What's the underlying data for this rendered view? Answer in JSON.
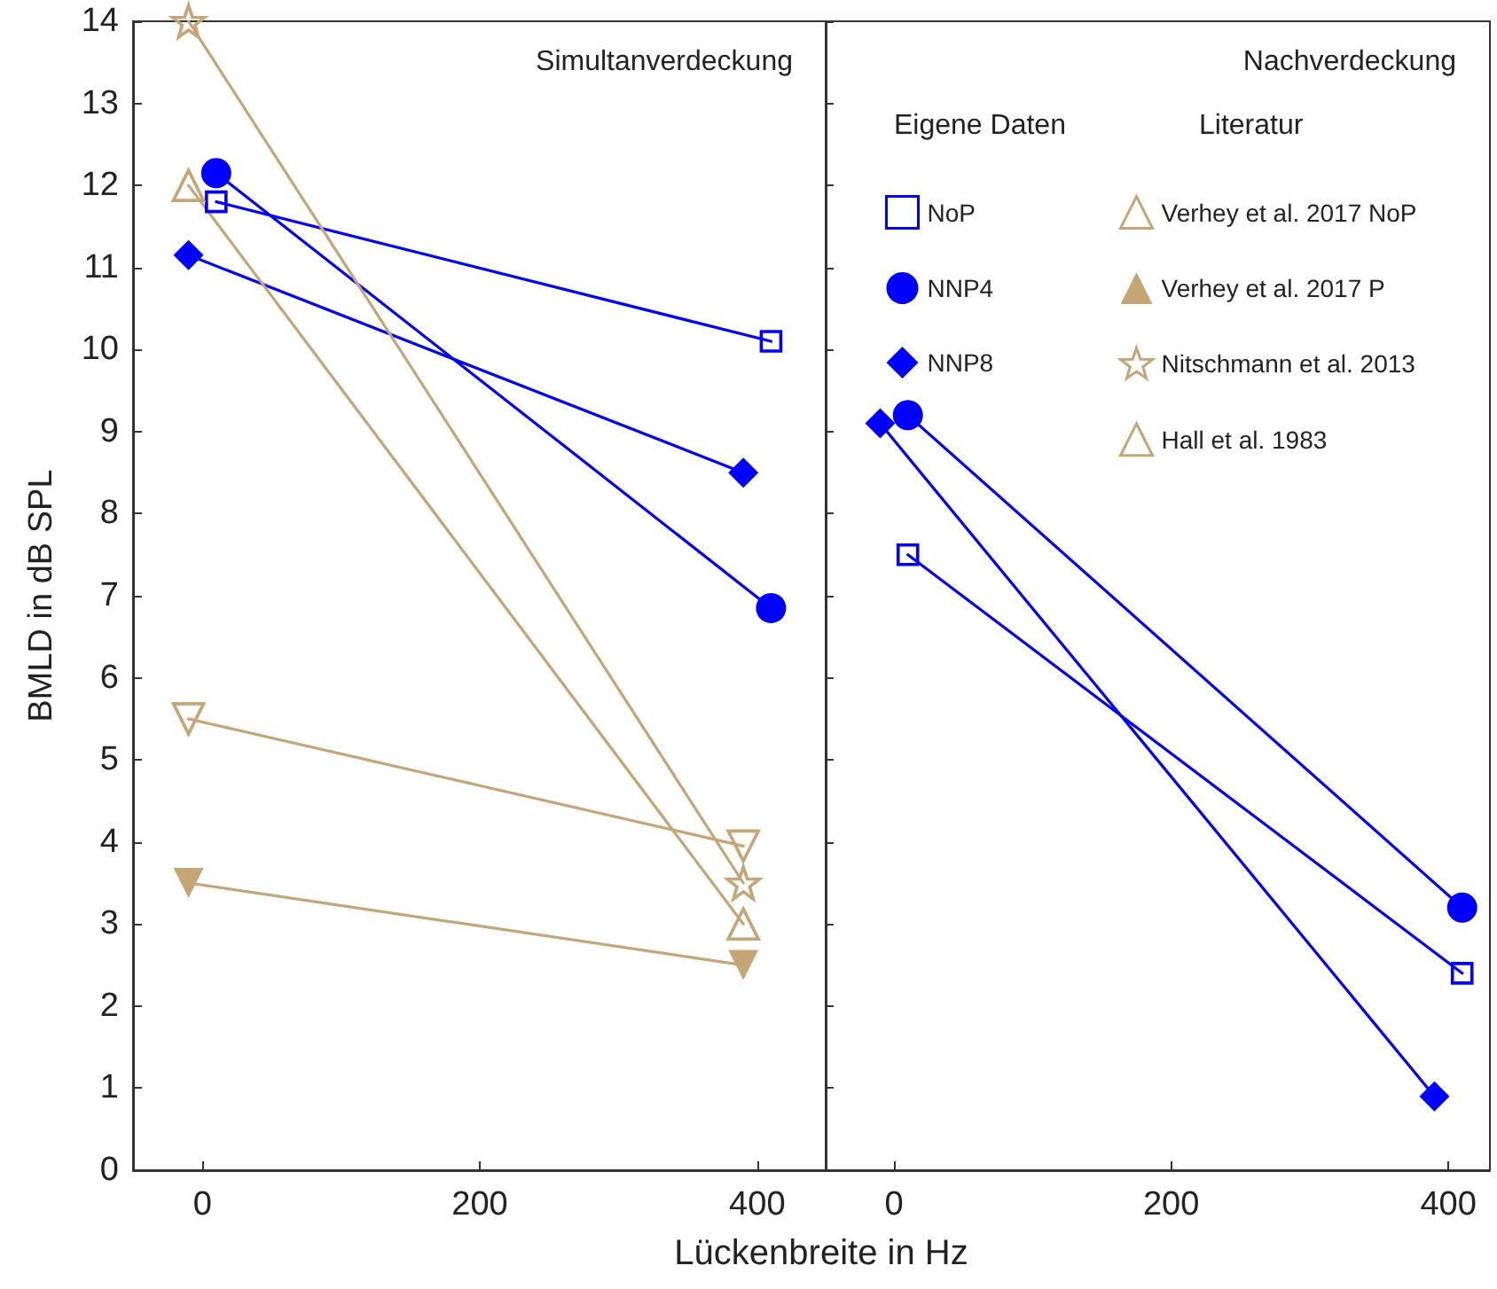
{
  "chart_data": [
    {
      "type": "line",
      "title": "Simultanverdeckung",
      "xlabel": "Lückenbreite in Hz",
      "ylabel": "BMLD in dB SPL",
      "annotations": [
        "Eigene Daten",
        "Literatur"
      ],
      "xlim": [
        -50,
        450
      ],
      "xticks": [
        0,
        200,
        400
      ],
      "ylim": [
        0,
        14
      ],
      "yticks": [
        0,
        1,
        2,
        3,
        4,
        5,
        6,
        7,
        8,
        9,
        10,
        11,
        12,
        13,
        14
      ],
      "legend": "right",
      "series": [
        {
          "name": "NoP",
          "color": "#0000ff",
          "marker": "square-open",
          "x": [
            10,
            410
          ],
          "values": [
            11.8,
            10.1
          ]
        },
        {
          "name": "NNP4",
          "color": "#0000ff",
          "marker": "circle",
          "x": [
            10,
            410
          ],
          "values": [
            12.15,
            6.85
          ]
        },
        {
          "name": "NNP8",
          "color": "#0000ff",
          "marker": "diamond",
          "x": [
            -10,
            390
          ],
          "values": [
            11.15,
            8.5
          ]
        },
        {
          "name": "Verhey et al. 2017 NoP",
          "color": "#c6a574",
          "marker": "triangle-down-open",
          "x": [
            -10,
            390
          ],
          "values": [
            5.5,
            3.95
          ]
        },
        {
          "name": "Verhey et al. 2017 P",
          "color": "#c6a574",
          "marker": "triangle-down",
          "x": [
            -10,
            390
          ],
          "values": [
            3.5,
            2.5
          ]
        },
        {
          "name": "Nitschmann et al. 2013",
          "color": "#c6a574",
          "marker": "star-open",
          "x": [
            -10,
            390
          ],
          "values": [
            14,
            3.5
          ]
        },
        {
          "name": "Hall et al. 1983",
          "color": "#c6a574",
          "marker": "triangle-open",
          "x": [
            -10,
            390
          ],
          "values": [
            12,
            3.0
          ]
        }
      ]
    },
    {
      "type": "line",
      "title": "Nachverdeckung",
      "xlim": [
        -50,
        430
      ],
      "xticks": [
        0,
        200,
        400
      ],
      "ylim": [
        0,
        14
      ],
      "yticks": [
        0,
        1,
        2,
        3,
        4,
        5,
        6,
        7,
        8,
        9,
        10,
        11,
        12,
        13,
        14
      ],
      "tick_labels": "x",
      "series": [
        {
          "color": "#0000ff",
          "marker": "square-open",
          "x": [
            10,
            410
          ],
          "values": [
            7.5,
            2.4
          ]
        },
        {
          "color": "#0000ff",
          "marker": "circle",
          "x": [
            10,
            410
          ],
          "values": [
            9.2,
            3.2
          ]
        },
        {
          "color": "#0000ff",
          "marker": "diamond",
          "x": [
            -10,
            390
          ],
          "values": [
            9.1,
            0.9
          ]
        }
      ]
    }
  ]
}
